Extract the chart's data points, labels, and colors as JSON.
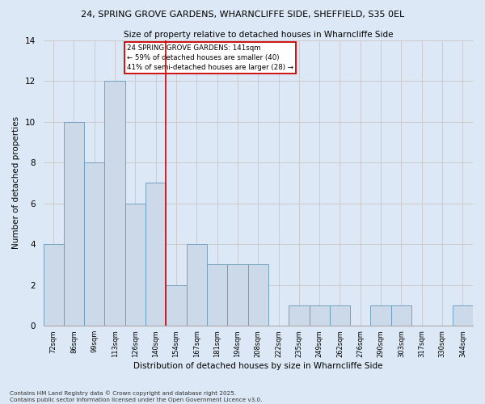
{
  "title_line1": "24, SPRING GROVE GARDENS, WHARNCLIFFE SIDE, SHEFFIELD, S35 0EL",
  "title_line2": "Size of property relative to detached houses in Wharncliffe Side",
  "xlabel": "Distribution of detached houses by size in Wharncliffe Side",
  "ylabel": "Number of detached properties",
  "footer_line1": "Contains HM Land Registry data © Crown copyright and database right 2025.",
  "footer_line2": "Contains public sector information licensed under the Open Government Licence v3.0.",
  "annotation_line1": "24 SPRING GROVE GARDENS: 141sqm",
  "annotation_line2": "← 59% of detached houses are smaller (40)",
  "annotation_line3": "41% of semi-detached houses are larger (28) →",
  "bar_labels": [
    "72sqm",
    "86sqm",
    "99sqm",
    "113sqm",
    "126sqm",
    "140sqm",
    "154sqm",
    "167sqm",
    "181sqm",
    "194sqm",
    "208sqm",
    "222sqm",
    "235sqm",
    "249sqm",
    "262sqm",
    "276sqm",
    "290sqm",
    "303sqm",
    "317sqm",
    "330sqm",
    "344sqm"
  ],
  "bar_heights": [
    4,
    10,
    8,
    12,
    6,
    7,
    2,
    4,
    3,
    3,
    3,
    0,
    1,
    1,
    1,
    0,
    1,
    1,
    0,
    0,
    1
  ],
  "bar_color": "#ccd9e8",
  "bar_edge_color": "#6699bb",
  "reference_line_x": 5.5,
  "reference_line_color": "#cc0000",
  "annotation_box_color": "#cc0000",
  "ylim": [
    0,
    14
  ],
  "yticks": [
    0,
    2,
    4,
    6,
    8,
    10,
    12,
    14
  ],
  "grid_color": "#cccccc",
  "background_color": "#dce8f5",
  "plot_bg_color": "#dce8f5",
  "figsize": [
    6.0,
    5.0
  ],
  "dpi": 100
}
